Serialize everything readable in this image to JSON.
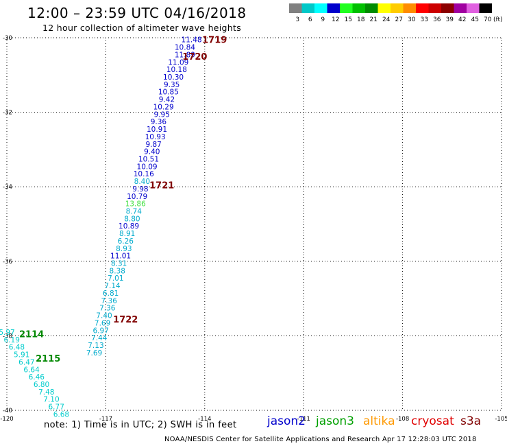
{
  "header": {
    "title": "12:00 – 23:59 UTC 04/16/2018",
    "subtitle": "12 hour collection of altimeter wave heights"
  },
  "scale": {
    "unit": "(ft)",
    "bins": [
      {
        "label": "3",
        "color": "#808080"
      },
      {
        "label": "6",
        "color": "#00c8c8"
      },
      {
        "label": "9",
        "color": "#00ffff"
      },
      {
        "label": "12",
        "color": "#0000cc"
      },
      {
        "label": "15",
        "color": "#20ff20"
      },
      {
        "label": "18",
        "color": "#00c000"
      },
      {
        "label": "21",
        "color": "#008c00"
      },
      {
        "label": "24",
        "color": "#ffff00"
      },
      {
        "label": "27",
        "color": "#ffcc00"
      },
      {
        "label": "30",
        "color": "#ff8c00"
      },
      {
        "label": "33",
        "color": "#ff0000"
      },
      {
        "label": "36",
        "color": "#cc0000"
      },
      {
        "label": "39",
        "color": "#8c0000"
      },
      {
        "label": "42",
        "color": "#a000a0"
      },
      {
        "label": "45",
        "color": "#e060e0"
      },
      {
        "label": "70",
        "color": "#000000"
      }
    ]
  },
  "footer": {
    "note": "note:  1) Time is in UTC;  2) SWH is in feet",
    "credit": "NOAA/NESDIS Center for Satellite Applications and Research    Apr 17 12:28:03 UTC 2018",
    "satellites": [
      {
        "name": "jason2",
        "color": "#0000cc"
      },
      {
        "name": "jason3",
        "color": "#00a000"
      },
      {
        "name": "altika",
        "color": "#ff9900"
      },
      {
        "name": "cryosat",
        "color": "#e00000"
      },
      {
        "name": "s3a",
        "color": "#800000"
      }
    ]
  },
  "chart_data": {
    "type": "scatter",
    "xlim": [
      -120,
      -105
    ],
    "ylim": [
      -40,
      -30
    ],
    "x_ticks": [
      "-120",
      "-117",
      "-114",
      "-111",
      "-108",
      "-105"
    ],
    "y_ticks": [
      "-30",
      "-32",
      "-34",
      "-36",
      "-38",
      "-40"
    ],
    "grid": true,
    "time_labels": [
      {
        "text": "1719",
        "lon": -113.7,
        "lat": -30.05,
        "color": "#800000"
      },
      {
        "text": "1720",
        "lon": -114.3,
        "lat": -30.5,
        "color": "#800000"
      },
      {
        "text": "1721",
        "lon": -115.3,
        "lat": -33.95,
        "color": "#800000"
      },
      {
        "text": "1722",
        "lon": -116.4,
        "lat": -37.55,
        "color": "#800000"
      },
      {
        "text": "2114",
        "lon": -119.25,
        "lat": -37.95,
        "color": "#008800"
      },
      {
        "text": "2115",
        "lon": -118.75,
        "lat": -38.6,
        "color": "#008800"
      }
    ],
    "points": [
      {
        "v": "11.48",
        "lon": -114.4,
        "lat": -30.05,
        "c": "#0000cc"
      },
      {
        "v": "10.84",
        "lon": -114.6,
        "lat": -30.25,
        "c": "#0000cc"
      },
      {
        "v": "11.89",
        "lon": -114.6,
        "lat": -30.45,
        "c": "#0000cc"
      },
      {
        "v": "11.09",
        "lon": -114.8,
        "lat": -30.65,
        "c": "#0000cc"
      },
      {
        "v": "10.18",
        "lon": -114.85,
        "lat": -30.85,
        "c": "#0000cc"
      },
      {
        "v": "10.30",
        "lon": -114.95,
        "lat": -31.05,
        "c": "#0000cc"
      },
      {
        "v": "9.35",
        "lon": -115.0,
        "lat": -31.25,
        "c": "#0000cc"
      },
      {
        "v": "10.85",
        "lon": -115.1,
        "lat": -31.45,
        "c": "#0000cc"
      },
      {
        "v": "9.42",
        "lon": -115.15,
        "lat": -31.65,
        "c": "#0000cc"
      },
      {
        "v": "10.29",
        "lon": -115.25,
        "lat": -31.85,
        "c": "#0000cc"
      },
      {
        "v": "9.95",
        "lon": -115.3,
        "lat": -32.05,
        "c": "#0000cc"
      },
      {
        "v": "9.36",
        "lon": -115.4,
        "lat": -32.25,
        "c": "#0000cc"
      },
      {
        "v": "10.91",
        "lon": -115.45,
        "lat": -32.45,
        "c": "#0000cc"
      },
      {
        "v": "10.93",
        "lon": -115.5,
        "lat": -32.65,
        "c": "#0000cc"
      },
      {
        "v": "9.87",
        "lon": -115.55,
        "lat": -32.85,
        "c": "#0000cc"
      },
      {
        "v": "9.40",
        "lon": -115.6,
        "lat": -33.05,
        "c": "#0000cc"
      },
      {
        "v": "10.51",
        "lon": -115.7,
        "lat": -33.25,
        "c": "#0000cc"
      },
      {
        "v": "10.09",
        "lon": -115.75,
        "lat": -33.45,
        "c": "#0000cc"
      },
      {
        "v": "10.16",
        "lon": -115.85,
        "lat": -33.65,
        "c": "#0000cc"
      },
      {
        "v": "8.40",
        "lon": -115.9,
        "lat": -33.85,
        "c": "#00aacc"
      },
      {
        "v": "9.98",
        "lon": -115.95,
        "lat": -34.05,
        "c": "#0000cc"
      },
      {
        "v": "10.79",
        "lon": -116.05,
        "lat": -34.25,
        "c": "#0000cc"
      },
      {
        "v": "13.86",
        "lon": -116.1,
        "lat": -34.45,
        "c": "#40e040"
      },
      {
        "v": "8.74",
        "lon": -116.15,
        "lat": -34.65,
        "c": "#00aacc"
      },
      {
        "v": "8.80",
        "lon": -116.2,
        "lat": -34.85,
        "c": "#00aacc"
      },
      {
        "v": "10.89",
        "lon": -116.3,
        "lat": -35.05,
        "c": "#0000cc"
      },
      {
        "v": "8.91",
        "lon": -116.35,
        "lat": -35.25,
        "c": "#00aacc"
      },
      {
        "v": "6.26",
        "lon": -116.4,
        "lat": -35.45,
        "c": "#00aacc"
      },
      {
        "v": "8.93",
        "lon": -116.45,
        "lat": -35.65,
        "c": "#00aacc"
      },
      {
        "v": "11.01",
        "lon": -116.55,
        "lat": -35.85,
        "c": "#0000cc"
      },
      {
        "v": "8.31",
        "lon": -116.6,
        "lat": -36.05,
        "c": "#00aacc"
      },
      {
        "v": "8.38",
        "lon": -116.65,
        "lat": -36.25,
        "c": "#00aacc"
      },
      {
        "v": "7.01",
        "lon": -116.7,
        "lat": -36.45,
        "c": "#00aacc"
      },
      {
        "v": "7.14",
        "lon": -116.8,
        "lat": -36.65,
        "c": "#00aacc"
      },
      {
        "v": "6.81",
        "lon": -116.85,
        "lat": -36.85,
        "c": "#00aacc"
      },
      {
        "v": "7.36",
        "lon": -116.9,
        "lat": -37.05,
        "c": "#00aacc"
      },
      {
        "v": "7.36",
        "lon": -116.95,
        "lat": -37.25,
        "c": "#00aacc"
      },
      {
        "v": "7.40",
        "lon": -117.05,
        "lat": -37.45,
        "c": "#00aacc"
      },
      {
        "v": "7.69",
        "lon": -117.1,
        "lat": -37.65,
        "c": "#00aacc"
      },
      {
        "v": "6.97",
        "lon": -117.15,
        "lat": -37.85,
        "c": "#00aacc"
      },
      {
        "v": "7.44",
        "lon": -117.2,
        "lat": -38.05,
        "c": "#00aacc"
      },
      {
        "v": "7.13",
        "lon": -117.3,
        "lat": -38.25,
        "c": "#00aacc"
      },
      {
        "v": "7.69",
        "lon": -117.35,
        "lat": -38.45,
        "c": "#00aacc"
      },
      {
        "v": "5.97",
        "lon": -120.0,
        "lat": -37.9,
        "c": "#00cccc"
      },
      {
        "v": "6.19",
        "lon": -119.85,
        "lat": -38.1,
        "c": "#00cccc"
      },
      {
        "v": "6.48",
        "lon": -119.7,
        "lat": -38.3,
        "c": "#00cccc"
      },
      {
        "v": "5.91",
        "lon": -119.55,
        "lat": -38.5,
        "c": "#00cccc"
      },
      {
        "v": "6.47",
        "lon": -119.4,
        "lat": -38.7,
        "c": "#00cccc"
      },
      {
        "v": "6.64",
        "lon": -119.25,
        "lat": -38.9,
        "c": "#00cccc"
      },
      {
        "v": "6.46",
        "lon": -119.1,
        "lat": -39.1,
        "c": "#00cccc"
      },
      {
        "v": "6.80",
        "lon": -118.95,
        "lat": -39.3,
        "c": "#00cccc"
      },
      {
        "v": "7.48",
        "lon": -118.8,
        "lat": -39.5,
        "c": "#00cccc"
      },
      {
        "v": "7.10",
        "lon": -118.65,
        "lat": -39.7,
        "c": "#00cccc"
      },
      {
        "v": "6.77",
        "lon": -118.5,
        "lat": -39.9,
        "c": "#00cccc"
      },
      {
        "v": "6.68",
        "lon": -118.35,
        "lat": -40.1,
        "c": "#00cccc"
      }
    ]
  }
}
